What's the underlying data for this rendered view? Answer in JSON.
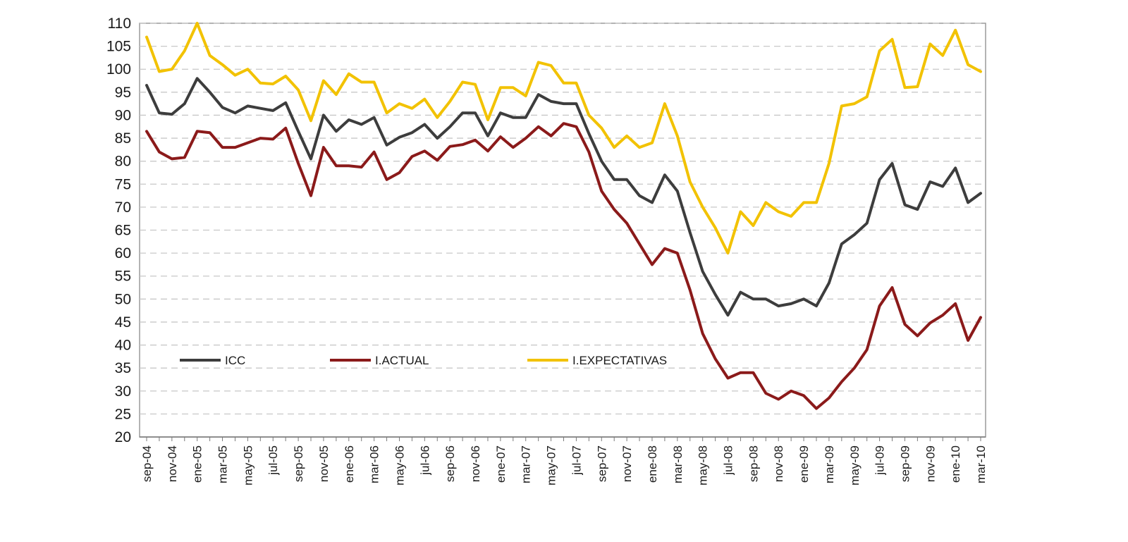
{
  "chart_data": {
    "type": "line",
    "title": "",
    "xlabel": "",
    "ylabel": "",
    "ylim": [
      20,
      110
    ],
    "ytick_step": 5,
    "grid": true,
    "legend_position": "lower-left",
    "x": [
      "sep-04",
      "oct-04",
      "nov-04",
      "dic-04",
      "ene-05",
      "feb-05",
      "mar-05",
      "abr-05",
      "may-05",
      "jun-05",
      "jul-05",
      "ago-05",
      "sep-05",
      "oct-05",
      "nov-05",
      "dic-05",
      "ene-06",
      "feb-06",
      "mar-06",
      "abr-06",
      "may-06",
      "jun-06",
      "jul-06",
      "ago-06",
      "sep-06",
      "oct-06",
      "nov-06",
      "dic-06",
      "ene-07",
      "feb-07",
      "mar-07",
      "abr-07",
      "may-07",
      "jun-07",
      "jul-07",
      "ago-07",
      "sep-07",
      "oct-07",
      "nov-07",
      "dic-07",
      "ene-08",
      "feb-08",
      "mar-08",
      "abr-08",
      "may-08",
      "jun-08",
      "jul-08",
      "ago-08",
      "sep-08",
      "oct-08",
      "nov-08",
      "dic-08",
      "ene-09",
      "feb-09",
      "mar-09",
      "abr-09",
      "may-09",
      "jun-09",
      "jul-09",
      "ago-09",
      "sep-09",
      "oct-09",
      "nov-09",
      "dic-09",
      "ene-10",
      "feb-10",
      "mar-10"
    ],
    "x_tick_labels": [
      "sep-04",
      "nov-04",
      "ene-05",
      "mar-05",
      "may-05",
      "jul-05",
      "sep-05",
      "nov-05",
      "ene-06",
      "mar-06",
      "may-06",
      "jul-06",
      "sep-06",
      "nov-06",
      "ene-07",
      "mar-07",
      "may-07",
      "jul-07",
      "sep-07",
      "nov-07",
      "ene-08",
      "mar-08",
      "may-08",
      "jul-08",
      "sep-08",
      "nov-08",
      "ene-09",
      "mar-09",
      "may-09",
      "jul-09",
      "sep-09",
      "nov-09",
      "ene-10",
      "mar-10"
    ],
    "series": [
      {
        "name": "ICC",
        "color": "#3d3d3d",
        "values": [
          96.5,
          90.5,
          90.2,
          92.5,
          98,
          95,
          91.7,
          90.5,
          92,
          91.5,
          91,
          92.7,
          86.5,
          80.5,
          90,
          86.5,
          89,
          88,
          89.5,
          83.5,
          85.2,
          86.2,
          88,
          85,
          87.5,
          90.5,
          90.5,
          85.5,
          90.5,
          89.5,
          89.5,
          94.5,
          93,
          92.5,
          92.5,
          86,
          80,
          76,
          76,
          72.5,
          71,
          77,
          73.5,
          64.5,
          56,
          51,
          46.5,
          51.5,
          50,
          50,
          48.5,
          49,
          50,
          48.5,
          53.5,
          62,
          64,
          66.5,
          76,
          79.5,
          70.5,
          69.5,
          75.5,
          74.5,
          78.5,
          71,
          73
        ]
      },
      {
        "name": "I.ACTUAL",
        "color": "#8b1a1a",
        "values": [
          86.5,
          82,
          80.5,
          80.8,
          86.5,
          86.2,
          83,
          83,
          84,
          85,
          84.8,
          87.2,
          79.5,
          72.5,
          83,
          79,
          79,
          78.7,
          82,
          76,
          77.5,
          81,
          82.2,
          80.2,
          83.2,
          83.6,
          84.6,
          82.2,
          85.3,
          83,
          85,
          87.5,
          85.5,
          88.2,
          87.5,
          82,
          73.5,
          69.5,
          66.5,
          62,
          57.5,
          61,
          60,
          52,
          42.5,
          37,
          32.8,
          34,
          34,
          29.5,
          28.2,
          30,
          29,
          26.2,
          28.5,
          32,
          35,
          39,
          48.5,
          52.5,
          44.5,
          42,
          44.8,
          46.5,
          49,
          41,
          46
        ]
      },
      {
        "name": "I.EXPECTATIVAS",
        "color": "#f2c200",
        "values": [
          107,
          99.5,
          100,
          104,
          110,
          103,
          101,
          98.7,
          100,
          97,
          96.8,
          98.5,
          95.5,
          88.8,
          97.5,
          94.5,
          99,
          97.2,
          97.2,
          90.5,
          92.5,
          91.5,
          93.5,
          89.5,
          93,
          97.2,
          96.7,
          89,
          96,
          96,
          94.2,
          101.5,
          100.8,
          97,
          97,
          90,
          87.2,
          83,
          85.5,
          83,
          84,
          92.5,
          85.5,
          75.5,
          70,
          65.5,
          60,
          69,
          66,
          71,
          69,
          68,
          71,
          71,
          79.5,
          92,
          92.5,
          94,
          104,
          106.5,
          96,
          96.2,
          105.5,
          103,
          108.5,
          101,
          99.5
        ]
      }
    ]
  }
}
